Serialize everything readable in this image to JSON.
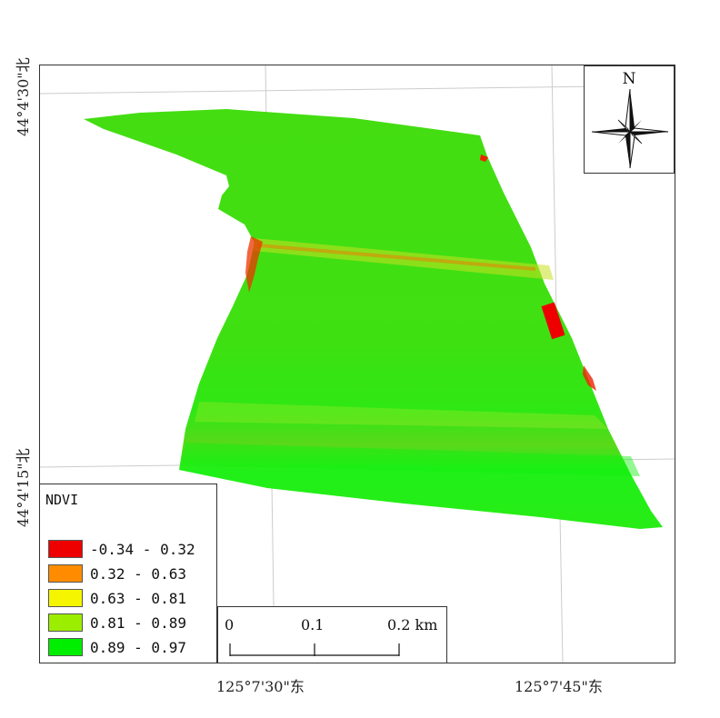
{
  "map": {
    "grid": {
      "latitude_labels": [
        "44°4'30\"北",
        "44°4'15\"北"
      ],
      "longitude_labels": [
        "125°7'30\"东",
        "125°7'45\"东"
      ]
    },
    "north_arrow": {
      "letter": "N",
      "icon": "compass-rose-icon"
    },
    "legend": {
      "title": "NDVI",
      "items": [
        {
          "label": "-0.34 - 0.32",
          "color": "#ee0000"
        },
        {
          "label": "0.32 - 0.63",
          "color": "#ff8c00"
        },
        {
          "label": "0.63 - 0.81",
          "color": "#f5f500"
        },
        {
          "label": "0.81 - 0.89",
          "color": "#9cee00"
        },
        {
          "label": "0.89 - 0.97",
          "color": "#00ee00"
        }
      ]
    },
    "scale_bar": {
      "labels": [
        "0",
        "0.1",
        "0.2 km"
      ]
    },
    "colors": {
      "field_base": "#3ee010",
      "field_bright": "#1ff01a",
      "stress_stripe": "#c8e020",
      "hotspot": "#ee2200",
      "frame": "#333333"
    }
  }
}
